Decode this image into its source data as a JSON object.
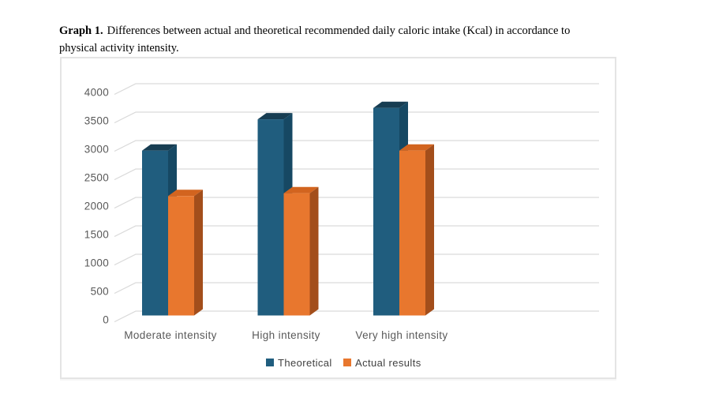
{
  "caption": {
    "prefix": "Graph 1.",
    "line1": "Differences between actual and theoretical recommended daily caloric intake (Kcal) in accordance to",
    "line2": "physical activity intensity."
  },
  "chart_data": {
    "type": "bar",
    "variant": "3d-clustered-column",
    "title": "",
    "xlabel": "",
    "ylabel": "",
    "categories": [
      "Moderate intensity",
      "High intensity",
      "Very high intensity"
    ],
    "series": [
      {
        "name": "Theoretical",
        "values": [
          2900,
          3450,
          3650
        ],
        "color": "#205d7e",
        "color_top": "#173d52",
        "color_side": "#164863"
      },
      {
        "name": "Actual results",
        "values": [
          2100,
          2150,
          2900
        ],
        "color": "#e8772e",
        "color_top": "#d2641f",
        "color_side": "#a34e1b"
      }
    ],
    "ylim": [
      0,
      4000
    ],
    "ytick_step": 500,
    "ytick_labels": [
      "0",
      "500",
      "1000",
      "1500",
      "2000",
      "2500",
      "3000",
      "3500",
      "4000"
    ],
    "grid": true,
    "legend_position": "bottom",
    "colors": {
      "gridline": "#d9d9d9",
      "axis_text": "#595959",
      "legend_text": "#404040",
      "frame_border": "#e4e4e4",
      "plot_background": "#ffffff"
    }
  }
}
